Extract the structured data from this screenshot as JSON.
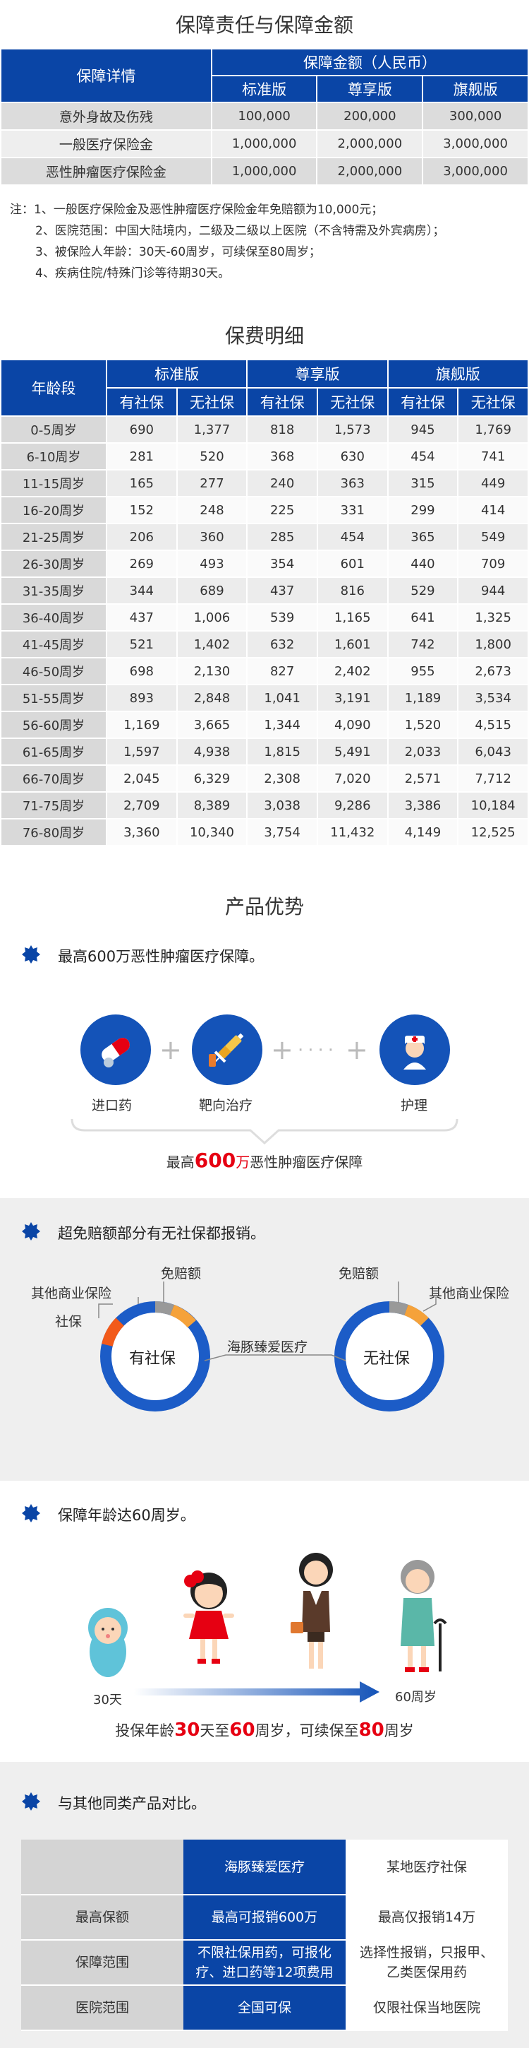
{
  "coverage": {
    "title": "保障责任与保障金额",
    "col_detail": "保障详情",
    "col_amount": "保障金额（人民币）",
    "plans": [
      "标准版",
      "尊享版",
      "旗舰版"
    ],
    "rows": [
      {
        "label": "意外身故及伤残",
        "values": [
          "100,000",
          "200,000",
          "300,000"
        ]
      },
      {
        "label": "一般医疗保险金",
        "values": [
          "1,000,000",
          "2,000,000",
          "3,000,000"
        ]
      },
      {
        "label": "恶性肿瘤医疗保险金",
        "values": [
          "1,000,000",
          "2,000,000",
          "3,000,000"
        ]
      }
    ],
    "notes": [
      "注：1、一般医疗保险金及恶性肿瘤医疗保险金年免赔额为10,000元；",
      "2、医院范围：中国大陆境内，二级及二级以上医院（不含特需及外宾病房）；",
      "3、被保险人年龄：30天-60周岁，可续保至80周岁；",
      "4、疾病住院/特殊门诊等待期30天。"
    ]
  },
  "premium": {
    "title": "保费明细",
    "col_age": "年龄段",
    "plans": [
      "标准版",
      "尊享版",
      "旗舰版"
    ],
    "sub": [
      "有社保",
      "无社保"
    ],
    "rows": [
      {
        "age": "0-5周岁",
        "v": [
          "690",
          "1,377",
          "818",
          "1,573",
          "945",
          "1,769"
        ]
      },
      {
        "age": "6-10周岁",
        "v": [
          "281",
          "520",
          "368",
          "630",
          "454",
          "741"
        ]
      },
      {
        "age": "11-15周岁",
        "v": [
          "165",
          "277",
          "240",
          "363",
          "315",
          "449"
        ]
      },
      {
        "age": "16-20周岁",
        "v": [
          "152",
          "248",
          "225",
          "331",
          "299",
          "414"
        ]
      },
      {
        "age": "21-25周岁",
        "v": [
          "206",
          "360",
          "285",
          "454",
          "365",
          "549"
        ]
      },
      {
        "age": "26-30周岁",
        "v": [
          "269",
          "493",
          "354",
          "601",
          "440",
          "709"
        ]
      },
      {
        "age": "31-35周岁",
        "v": [
          "344",
          "689",
          "437",
          "816",
          "529",
          "944"
        ]
      },
      {
        "age": "36-40周岁",
        "v": [
          "437",
          "1,006",
          "539",
          "1,165",
          "641",
          "1,325"
        ]
      },
      {
        "age": "41-45周岁",
        "v": [
          "521",
          "1,402",
          "632",
          "1,601",
          "742",
          "1,800"
        ]
      },
      {
        "age": "46-50周岁",
        "v": [
          "698",
          "2,130",
          "827",
          "2,402",
          "955",
          "2,673"
        ]
      },
      {
        "age": "51-55周岁",
        "v": [
          "893",
          "2,848",
          "1,041",
          "3,191",
          "1,189",
          "3,534"
        ]
      },
      {
        "age": "56-60周岁",
        "v": [
          "1,169",
          "3,665",
          "1,344",
          "4,090",
          "1,520",
          "4,515"
        ]
      },
      {
        "age": "61-65周岁",
        "v": [
          "1,597",
          "4,938",
          "1,815",
          "5,491",
          "2,033",
          "6,043"
        ]
      },
      {
        "age": "66-70周岁",
        "v": [
          "2,045",
          "6,329",
          "2,308",
          "7,020",
          "2,571",
          "7,712"
        ]
      },
      {
        "age": "71-75周岁",
        "v": [
          "2,709",
          "8,389",
          "3,038",
          "9,286",
          "3,386",
          "10,184"
        ]
      },
      {
        "age": "76-80周岁",
        "v": [
          "3,360",
          "10,340",
          "3,754",
          "11,432",
          "4,149",
          "12,525"
        ]
      }
    ]
  },
  "advantages": {
    "title": "产品优势",
    "a1": {
      "text": "最高600万恶性肿瘤医疗保障。",
      "icons": [
        {
          "label": "进口药",
          "icon": "capsule-icon"
        },
        {
          "label": "靶向治疗",
          "icon": "syringe-icon"
        },
        {
          "label": "护理",
          "icon": "nurse-icon"
        }
      ],
      "caption_pre": "最高",
      "caption_num": "600",
      "caption_unit": "万",
      "caption_post": "恶性肿瘤医疗保障"
    },
    "a2": {
      "text": "超免赔额部分有无社保都报销。",
      "with_label": "有社保",
      "without_label": "无社保",
      "deductible": "免赔额",
      "other_commercial": "其他商业保险",
      "social": "社保",
      "product": "海豚臻爱医疗"
    },
    "a3": {
      "text": "保障年龄达60周岁。",
      "start": "30天",
      "end": "60周岁",
      "cap_1": "投保年龄",
      "cap_2": "30",
      "cap_3": "天至",
      "cap_4": "60",
      "cap_5": "周岁，可续保至",
      "cap_6": "80",
      "cap_7": "周岁"
    },
    "a4": {
      "text": "与其他同类产品对比。",
      "col_ours": "海豚臻爱医疗",
      "col_other": "某地医疗社保",
      "rows": [
        {
          "label": "最高保额",
          "ours": "最高可报销600万",
          "other": "最高仅报销14万"
        },
        {
          "label": "保障范围",
          "ours": "不限社保用药，可报化疗、进口药等12项费用",
          "other": "选择性报销，只报甲、乙类医保用药"
        },
        {
          "label": "医院范围",
          "ours": "全国可保",
          "other": "仅限社保当地医院"
        }
      ]
    }
  },
  "colors": {
    "brand_blue": "#0a45a6",
    "accent_red": "#e60012",
    "orange": "#f5a23a",
    "gray_table": "#dcdcdc"
  }
}
